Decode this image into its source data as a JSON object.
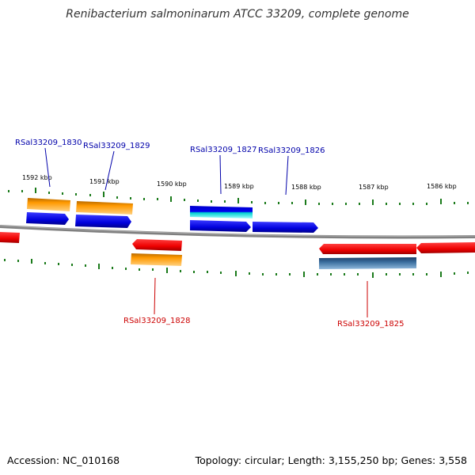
{
  "title": "Renibacterium salmoninarum ATCC 33209, complete genome",
  "footer": {
    "accession": "Accession: NC_010168",
    "stats": "Topology: circular; Length: 3,155,250 bp; Genes: 3,558"
  },
  "scale_labels": [
    "1592 kbp",
    "1591 kbp",
    "1590 kbp",
    "1589 kbp",
    "1588 kbp",
    "1587 kbp",
    "1586 kbp"
  ],
  "gene_labels": {
    "g1830": "RSal33209_1830",
    "g1829": "RSal33209_1829",
    "g1827": "RSal33209_1827",
    "g1826": "RSal33209_1826",
    "g1828": "RSal33209_1828",
    "g1825": "RSal33209_1825"
  },
  "colors": {
    "forward_cds": "#0000ee",
    "reverse_cds": "#ee0000",
    "orange_feature": "#ff9900",
    "cyan_feature": "#00cccc",
    "steel_feature": "#3a6e9e",
    "backbone": "#808080",
    "ticks": "#1a7a1a",
    "forward_label": "#0000aa",
    "reverse_label": "#cc0000"
  }
}
